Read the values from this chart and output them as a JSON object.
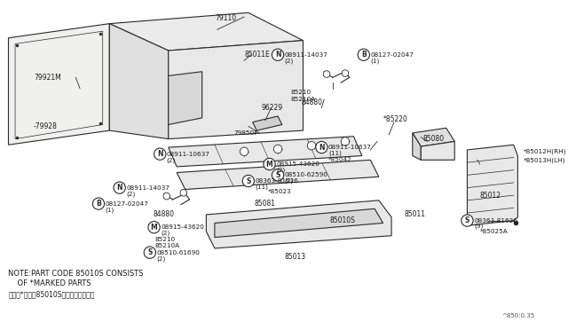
{
  "bg_color": "#f5f5f0",
  "line_color": "#2a2a2a",
  "text_color": "#1a1a1a",
  "fig_width": 6.4,
  "fig_height": 3.72,
  "note_line1": "NOTE:PART CODE 85010S CONSISTS",
  "note_line2": "    OF *MARKED PARTS",
  "note_line3": "（注）*印は、85010Sの構成部品です。",
  "diagram_ref": "^850:0.35"
}
